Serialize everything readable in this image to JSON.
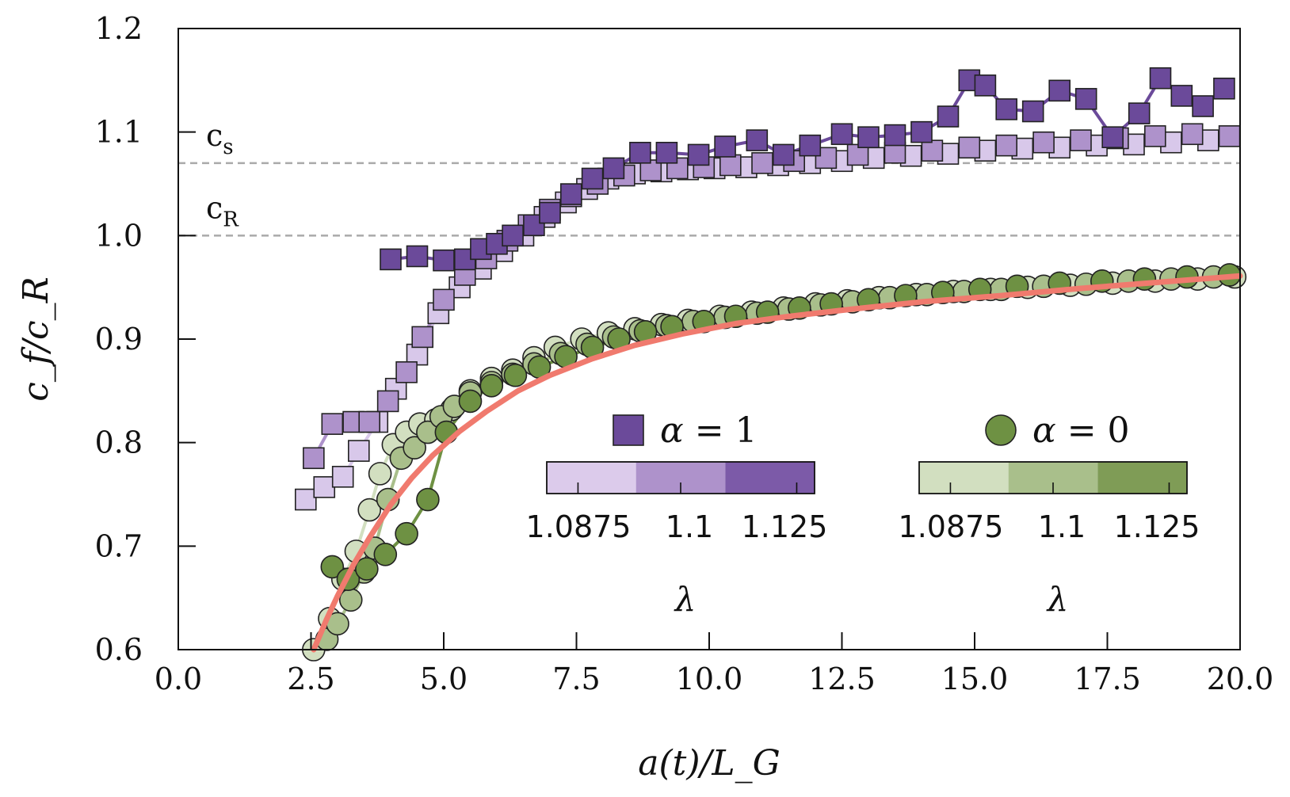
{
  "chart_data": {
    "type": "scatter",
    "xlabel": "a(t)/L_G",
    "ylabel": "c_f/c_R",
    "xlim": [
      0,
      20
    ],
    "ylim": [
      0.6,
      1.2
    ],
    "x_ticks": [
      "0.0",
      "2.5",
      "5.0",
      "7.5",
      "10.0",
      "12.5",
      "15.0",
      "17.5",
      "20.0"
    ],
    "y_ticks": [
      "0.6",
      "0.7",
      "0.8",
      "0.9",
      "1.0",
      "1.1",
      "1.2"
    ],
    "grid": false,
    "reference_lines": [
      {
        "label": "c",
        "sub": "s",
        "y": 1.07,
        "color": "#aaaaaa"
      },
      {
        "label": "c",
        "sub": "R",
        "y": 1.0,
        "color": "#aaaaaa"
      }
    ],
    "legend": [
      {
        "symbol": "square",
        "text_prefix": "α",
        "text_suffix": " = 1",
        "color": "#6b4a9a"
      },
      {
        "symbol": "circle",
        "text_prefix": "α",
        "text_suffix": " = 0",
        "color": "#6e9143"
      }
    ],
    "colorbars": [
      {
        "title": "λ",
        "ticks": [
          "1.0875",
          "1.1",
          "1.125"
        ],
        "colors": [
          "#dccbeb",
          "#ae92cb",
          "#7c5aa8"
        ]
      },
      {
        "title": "λ",
        "ticks": [
          "1.0875",
          "1.1",
          "1.125"
        ],
        "colors": [
          "#d2dfc0",
          "#a9bf8b",
          "#7f9c56"
        ]
      }
    ],
    "series": [
      {
        "marker": "square",
        "lambda": "1.0875",
        "color": "#d8c8ea",
        "x": [
          2.4,
          2.75,
          3.1,
          3.4,
          3.75,
          4.1,
          4.5,
          4.9,
          5.3,
          5.7,
          6.1,
          6.5,
          6.9,
          7.3,
          7.7,
          8.1,
          8.6,
          9.1,
          9.6,
          10.1,
          10.7,
          11.3,
          11.9,
          12.5,
          13.1,
          13.8,
          14.5,
          15.2,
          15.9,
          16.6,
          17.3,
          18.0,
          18.7,
          19.4
        ],
        "y": [
          0.745,
          0.757,
          0.767,
          0.792,
          0.82,
          0.852,
          0.885,
          0.925,
          0.95,
          0.968,
          0.985,
          1.0,
          1.018,
          1.032,
          1.045,
          1.055,
          1.06,
          1.062,
          1.064,
          1.065,
          1.066,
          1.068,
          1.07,
          1.072,
          1.075,
          1.077,
          1.079,
          1.082,
          1.084,
          1.085,
          1.087,
          1.088,
          1.09,
          1.092
        ]
      },
      {
        "marker": "square",
        "lambda": "1.1",
        "color": "#ae92cb",
        "x": [
          2.55,
          2.9,
          3.3,
          3.6,
          3.95,
          4.3,
          4.6,
          5.0,
          5.4,
          5.8,
          6.2,
          6.6,
          7.0,
          7.4,
          7.9,
          8.4,
          8.9,
          9.4,
          9.9,
          10.4,
          11.0,
          11.6,
          12.2,
          12.8,
          13.5,
          14.2,
          14.9,
          15.6,
          16.3,
          17.0,
          17.7,
          18.4,
          19.1,
          19.8
        ],
        "y": [
          0.785,
          0.818,
          0.82,
          0.82,
          0.84,
          0.868,
          0.902,
          0.938,
          0.962,
          0.978,
          0.995,
          1.01,
          1.025,
          1.038,
          1.05,
          1.058,
          1.063,
          1.065,
          1.066,
          1.068,
          1.07,
          1.072,
          1.075,
          1.078,
          1.08,
          1.082,
          1.085,
          1.087,
          1.09,
          1.092,
          1.094,
          1.096,
          1.098,
          1.096
        ]
      },
      {
        "marker": "square",
        "lambda": "1.125",
        "color": "#6b4a9a",
        "x": [
          4.0,
          4.5,
          5.0,
          5.4,
          5.7,
          6.0,
          6.3,
          6.7,
          7.0,
          7.4,
          7.8,
          8.2,
          8.7,
          9.2,
          9.8,
          10.3,
          10.9,
          11.4,
          11.9,
          12.5,
          13.0,
          13.5,
          14.0,
          14.5,
          14.9,
          15.2,
          15.6,
          16.1,
          16.6,
          17.1,
          17.6,
          18.1,
          18.5,
          18.9,
          19.3,
          19.7
        ],
        "y": [
          0.977,
          0.98,
          0.976,
          0.977,
          0.987,
          0.992,
          1.0,
          1.01,
          1.022,
          1.04,
          1.055,
          1.065,
          1.08,
          1.08,
          1.078,
          1.086,
          1.092,
          1.078,
          1.087,
          1.098,
          1.095,
          1.097,
          1.1,
          1.115,
          1.15,
          1.145,
          1.122,
          1.12,
          1.14,
          1.132,
          1.095,
          1.118,
          1.152,
          1.135,
          1.125,
          1.142
        ]
      },
      {
        "marker": "circle",
        "lambda": "1.0875",
        "color": "#d2dfc0",
        "x": [
          2.55,
          2.85,
          3.1,
          3.35,
          3.6,
          3.8,
          4.05,
          4.3,
          4.55,
          4.85,
          5.15,
          5.5,
          5.9,
          6.3,
          6.7,
          7.1,
          7.6,
          8.1,
          8.6,
          9.1,
          9.6,
          10.2,
          10.8,
          11.4,
          12.0,
          12.6,
          13.2,
          13.9,
          14.6,
          15.3,
          16.0,
          16.8,
          17.6,
          18.4,
          19.2,
          19.9
        ],
        "y": [
          0.6,
          0.63,
          0.668,
          0.695,
          0.735,
          0.77,
          0.798,
          0.81,
          0.818,
          0.822,
          0.832,
          0.85,
          0.862,
          0.87,
          0.882,
          0.892,
          0.9,
          0.906,
          0.91,
          0.914,
          0.918,
          0.922,
          0.926,
          0.93,
          0.934,
          0.937,
          0.94,
          0.943,
          0.946,
          0.948,
          0.95,
          0.952,
          0.954,
          0.956,
          0.958,
          0.96
        ]
      },
      {
        "marker": "circle",
        "lambda": "1.1",
        "color": "#a9bf8b",
        "x": [
          2.8,
          3.0,
          3.25,
          3.5,
          3.7,
          3.95,
          4.2,
          4.45,
          4.7,
          4.95,
          5.2,
          5.5,
          5.9,
          6.3,
          6.7,
          7.2,
          7.7,
          8.2,
          8.7,
          9.2,
          9.7,
          10.3,
          10.9,
          11.5,
          12.1,
          12.7,
          13.4,
          14.1,
          14.8,
          15.5,
          16.3,
          17.1,
          17.9,
          18.7,
          19.5
        ],
        "y": [
          0.61,
          0.625,
          0.648,
          0.675,
          0.698,
          0.745,
          0.785,
          0.795,
          0.81,
          0.825,
          0.835,
          0.848,
          0.858,
          0.866,
          0.876,
          0.886,
          0.895,
          0.902,
          0.908,
          0.913,
          0.917,
          0.921,
          0.925,
          0.929,
          0.933,
          0.936,
          0.94,
          0.943,
          0.946,
          0.948,
          0.951,
          0.953,
          0.956,
          0.958,
          0.96
        ]
      },
      {
        "marker": "circle",
        "lambda": "1.125",
        "color": "#6e9143",
        "x": [
          2.9,
          3.2,
          3.55,
          3.9,
          4.3,
          4.7,
          5.05,
          5.5,
          5.9,
          6.35,
          6.8,
          7.3,
          7.8,
          8.3,
          8.8,
          9.3,
          9.9,
          10.5,
          11.1,
          11.7,
          12.3,
          13.0,
          13.7,
          14.4,
          15.1,
          15.8,
          16.6,
          17.4,
          18.2,
          19.0,
          19.8
        ],
        "y": [
          0.68,
          0.668,
          0.678,
          0.692,
          0.712,
          0.745,
          0.81,
          0.84,
          0.855,
          0.865,
          0.873,
          0.883,
          0.892,
          0.9,
          0.907,
          0.912,
          0.917,
          0.922,
          0.926,
          0.93,
          0.934,
          0.938,
          0.942,
          0.945,
          0.948,
          0.951,
          0.954,
          0.956,
          0.958,
          0.96,
          0.962
        ]
      }
    ],
    "fit_curve": {
      "color": "#f07a6e",
      "x": [
        2.55,
        2.8,
        3.0,
        3.3,
        3.6,
        4.0,
        4.4,
        4.8,
        5.3,
        5.8,
        6.4,
        7.0,
        7.8,
        8.6,
        9.5,
        10.5,
        11.5,
        12.7,
        14.0,
        15.5,
        17.0,
        18.5,
        20.0
      ],
      "y": [
        0.6,
        0.63,
        0.652,
        0.682,
        0.708,
        0.74,
        0.766,
        0.788,
        0.811,
        0.83,
        0.85,
        0.865,
        0.881,
        0.894,
        0.905,
        0.915,
        0.922,
        0.929,
        0.936,
        0.942,
        0.949,
        0.955,
        0.961
      ]
    }
  }
}
